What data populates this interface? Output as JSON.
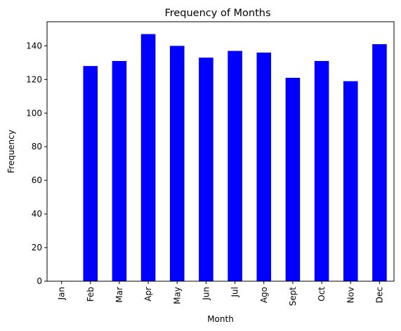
{
  "chart_data": {
    "type": "bar",
    "title": "Frequency of Months",
    "xlabel": "Month",
    "ylabel": "Frequency",
    "categories": [
      "Jan",
      "Feb",
      "Mar",
      "Apr",
      "May",
      "Jun",
      "Jul",
      "Ago",
      "Sept",
      "Oct",
      "Nov",
      "Dec"
    ],
    "values": [
      0,
      128,
      131,
      147,
      140,
      133,
      137,
      136,
      121,
      131,
      119,
      141
    ],
    "ylim": [
      0,
      154.35
    ],
    "yticks": [
      0,
      20,
      40,
      60,
      80,
      100,
      120,
      140
    ],
    "bar_color": "#0000ff",
    "grid": false,
    "legend": "none"
  }
}
